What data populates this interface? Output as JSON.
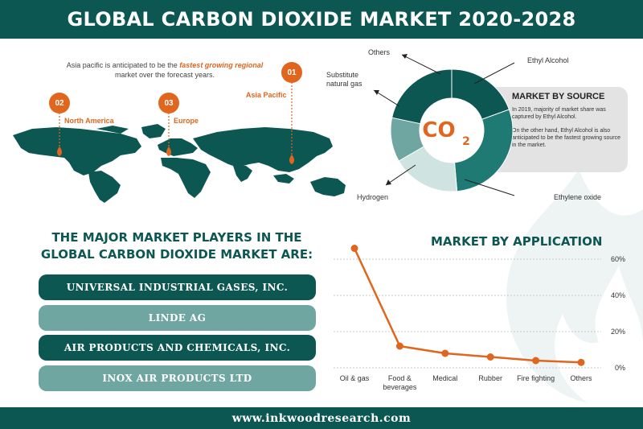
{
  "title": "GLOBAL CARBON DIOXIDE MARKET 2020-2028",
  "footer": "www.inkwoodresearch.com",
  "regional": {
    "note_prefix": "Asia pacific is anticipated to be the",
    "note_highlight": "fastest growing regional",
    "note_suffix": "market over the forecast years.",
    "regions": [
      {
        "rank": "01",
        "name": "Asia Pacific"
      },
      {
        "rank": "02",
        "name": "North America"
      },
      {
        "rank": "03",
        "name": "Europe"
      }
    ]
  },
  "source": {
    "title": "MARKET BY SOURCE",
    "text1": "In 2019, majority of market share was captured by Ethyl Alcohol.",
    "text2": "On the other hand, Ethyl Alcohol is also anticipated to be the fastest growing source in the market.",
    "co2": "CO",
    "co2_sub": "2",
    "labels": {
      "others": "Others",
      "ethyl_alcohol": "Ethyl Alcohol",
      "substitute": "Substitute natural gas",
      "hydrogen": "Hydrogen",
      "ethylene_oxide": "Ethylene oxide"
    },
    "colors": {
      "ethyl_alcohol": "#0d5753",
      "ethylene_oxide": "#1f7a74",
      "hydrogen": "#cfe3e1",
      "substitute": "#6fa6a2",
      "others": "#e0661e"
    }
  },
  "players": {
    "title_line1": "THE MAJOR MARKET PLAYERS IN THE",
    "title_line2": "GLOBAL CARBON DIOXIDE MARKET ARE:",
    "items": [
      "UNIVERSAL INDUSTRIAL GASES, INC.",
      "LINDE AG",
      "AIR PRODUCTS AND CHEMICALS, INC.",
      "INOX AIR PRODUCTS LTD"
    ]
  },
  "chart_data": {
    "type": "line",
    "title": "MARKET BY APPLICATION",
    "categories": [
      "Oil & gas",
      "Food & beverages",
      "Medical",
      "Rubber",
      "Fire fighting",
      "Others"
    ],
    "category_lines": [
      [
        "Oil & gas"
      ],
      [
        "Food &",
        "beverages"
      ],
      [
        "Medical"
      ],
      [
        "Rubber"
      ],
      [
        "Fire fighting"
      ],
      [
        "Others"
      ]
    ],
    "series": [
      {
        "values": [
          66,
          12,
          8,
          6,
          4,
          3
        ]
      }
    ],
    "ylim": [
      0,
      60
    ],
    "yticks": [
      0,
      20,
      40,
      60
    ],
    "ytick_labels": [
      "0%",
      "20%",
      "40%",
      "60%"
    ],
    "y_axis_position": "right",
    "grid": true,
    "color": "#e0661e"
  }
}
